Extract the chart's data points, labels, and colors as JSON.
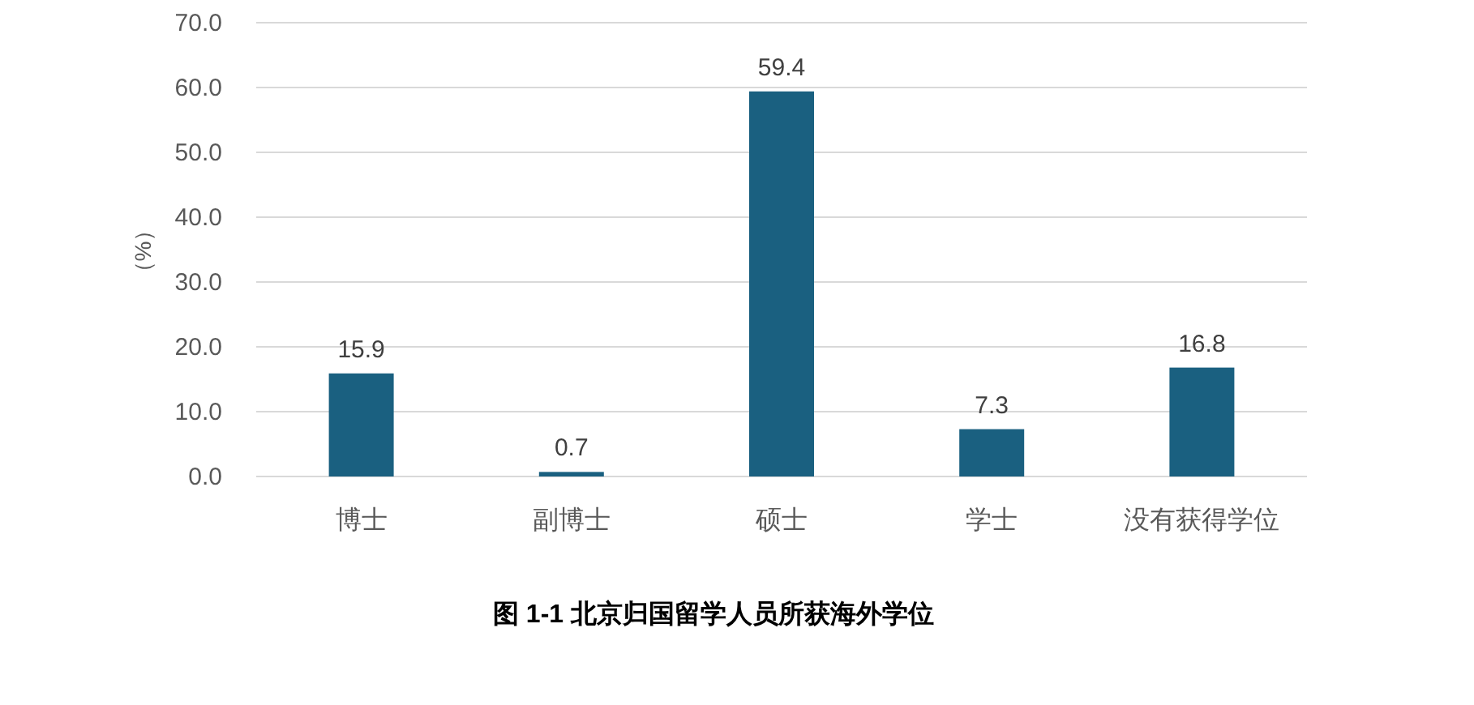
{
  "chart_data": {
    "type": "bar",
    "title": "图 1-1  北京归国留学人员所获海外学位",
    "ylabel": "（%）",
    "categories": [
      "博士",
      "副博士",
      "硕士",
      "学士",
      "没有获得学位"
    ],
    "values": [
      15.9,
      0.7,
      59.4,
      7.3,
      16.8
    ],
    "color": "#1a6080",
    "ylim": [
      0,
      70
    ],
    "yticks": [
      {
        "value": 0,
        "label": "0.0"
      },
      {
        "value": 10,
        "label": "10.0"
      },
      {
        "value": 20,
        "label": "20.0"
      },
      {
        "value": 30,
        "label": "30.0"
      },
      {
        "value": 40,
        "label": "40.0"
      },
      {
        "value": 50,
        "label": "50.0"
      },
      {
        "value": 60,
        "label": "60.0"
      },
      {
        "value": 70,
        "label": "70.0"
      }
    ],
    "grid": "y",
    "data_labels": true
  }
}
